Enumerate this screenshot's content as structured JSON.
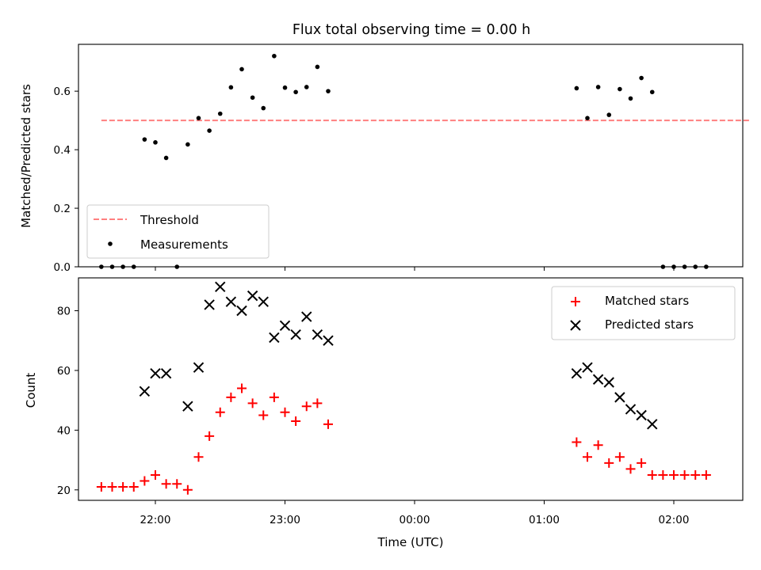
{
  "chart_data": [
    {
      "type": "scatter",
      "title": "Flux total observing time = 0.00 h",
      "xlabel": "",
      "ylabel": "Matched/Predicted stars",
      "ylim": [
        0,
        0.76
      ],
      "yticks": [
        "0.0",
        "0.2",
        "0.4",
        "0.6"
      ],
      "grid": false,
      "legend_position": "lower-left",
      "threshold": {
        "name": "Threshold",
        "value": 0.5,
        "x_range": [
          "21:35",
          "02:35"
        ],
        "color": "#ff7f7f",
        "style": "dashed"
      },
      "series": [
        {
          "name": "Measurements",
          "color": "#000000",
          "marker": "dot",
          "points": [
            [
              "21:35",
              0.0
            ],
            [
              "21:40",
              0.0
            ],
            [
              "21:45",
              0.0
            ],
            [
              "21:50",
              0.0
            ],
            [
              "21:55",
              0.435
            ],
            [
              "22:00",
              0.425
            ],
            [
              "22:05",
              0.372
            ],
            [
              "22:10",
              0.0
            ],
            [
              "22:15",
              0.418
            ],
            [
              "22:20",
              0.508
            ],
            [
              "22:25",
              0.465
            ],
            [
              "22:30",
              0.523
            ],
            [
              "22:35",
              0.613
            ],
            [
              "22:40",
              0.675
            ],
            [
              "22:45",
              0.578
            ],
            [
              "22:50",
              0.542
            ],
            [
              "22:55",
              0.72
            ],
            [
              "23:00",
              0.612
            ],
            [
              "23:05",
              0.597
            ],
            [
              "23:10",
              0.614
            ],
            [
              "23:15",
              0.683
            ],
            [
              "23:20",
              0.6
            ],
            [
              "01:15",
              0.61
            ],
            [
              "01:20",
              0.508
            ],
            [
              "01:25",
              0.614
            ],
            [
              "01:30",
              0.519
            ],
            [
              "01:35",
              0.607
            ],
            [
              "01:40",
              0.575
            ],
            [
              "01:45",
              0.645
            ],
            [
              "01:50",
              0.597
            ],
            [
              "01:55",
              0.0
            ],
            [
              "02:00",
              0.0
            ],
            [
              "02:05",
              0.0
            ],
            [
              "02:10",
              0.0
            ],
            [
              "02:15",
              0.0
            ]
          ]
        }
      ]
    },
    {
      "type": "scatter",
      "title": "",
      "xlabel": "Time (UTC)",
      "ylabel": "Count",
      "ylim": [
        16.5,
        91
      ],
      "yticks": [
        "20",
        "40",
        "60",
        "80"
      ],
      "xticks": [
        "22:00",
        "23:00",
        "00:00",
        "01:00",
        "02:00"
      ],
      "grid": false,
      "legend_position": "upper-right",
      "series": [
        {
          "name": "Matched stars",
          "color": "#ff0000",
          "marker": "plus",
          "points": [
            [
              "21:35",
              21
            ],
            [
              "21:40",
              21
            ],
            [
              "21:45",
              21
            ],
            [
              "21:50",
              21
            ],
            [
              "21:55",
              23
            ],
            [
              "22:00",
              25
            ],
            [
              "22:05",
              22
            ],
            [
              "22:10",
              22
            ],
            [
              "22:15",
              20
            ],
            [
              "22:20",
              31
            ],
            [
              "22:25",
              38
            ],
            [
              "22:30",
              46
            ],
            [
              "22:35",
              51
            ],
            [
              "22:40",
              54
            ],
            [
              "22:45",
              49
            ],
            [
              "22:50",
              45
            ],
            [
              "22:55",
              51
            ],
            [
              "23:00",
              46
            ],
            [
              "23:05",
              43
            ],
            [
              "23:10",
              48
            ],
            [
              "23:15",
              49
            ],
            [
              "23:20",
              42
            ],
            [
              "01:15",
              36
            ],
            [
              "01:20",
              31
            ],
            [
              "01:25",
              35
            ],
            [
              "01:30",
              29
            ],
            [
              "01:35",
              31
            ],
            [
              "01:40",
              27
            ],
            [
              "01:45",
              29
            ],
            [
              "01:50",
              25
            ],
            [
              "01:55",
              25
            ],
            [
              "02:00",
              25
            ],
            [
              "02:05",
              25
            ],
            [
              "02:10",
              25
            ],
            [
              "02:15",
              25
            ]
          ]
        },
        {
          "name": "Predicted stars",
          "color": "#000000",
          "marker": "x",
          "points": [
            [
              "21:55",
              53
            ],
            [
              "22:00",
              59
            ],
            [
              "22:05",
              59
            ],
            [
              "22:15",
              48
            ],
            [
              "22:20",
              61
            ],
            [
              "22:25",
              82
            ],
            [
              "22:30",
              88
            ],
            [
              "22:35",
              83
            ],
            [
              "22:40",
              80
            ],
            [
              "22:45",
              85
            ],
            [
              "22:50",
              83
            ],
            [
              "22:55",
              71
            ],
            [
              "23:00",
              75
            ],
            [
              "23:05",
              72
            ],
            [
              "23:10",
              78
            ],
            [
              "23:15",
              72
            ],
            [
              "23:20",
              70
            ],
            [
              "01:15",
              59
            ],
            [
              "01:20",
              61
            ],
            [
              "01:25",
              57
            ],
            [
              "01:30",
              56
            ],
            [
              "01:35",
              51
            ],
            [
              "01:40",
              47
            ],
            [
              "01:45",
              45
            ],
            [
              "01:50",
              42
            ]
          ]
        }
      ]
    }
  ]
}
